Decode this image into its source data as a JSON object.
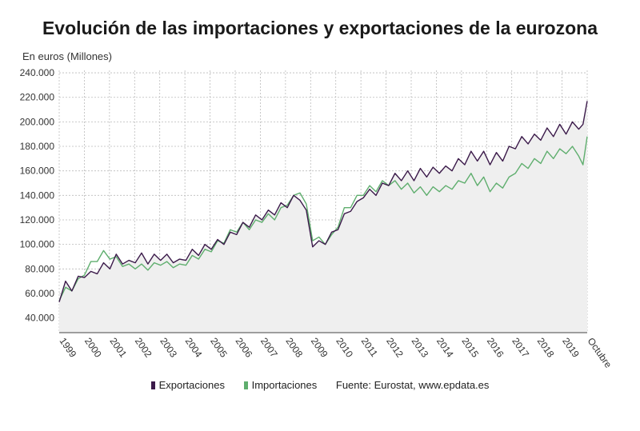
{
  "title": "Evolución de las importaciones y exportaciones de la eurozona",
  "colors": {
    "exportaciones": "#3b1a4a",
    "importaciones": "#5fae6e",
    "area": "#efefef"
  },
  "chart_data": {
    "type": "line",
    "ylabel": "En euros (Millones)",
    "xlabel": "",
    "ylim": [
      28000,
      242000
    ],
    "yticks": [
      {
        "value": 40000,
        "label": "40.000"
      },
      {
        "value": 60000,
        "label": "60.000"
      },
      {
        "value": 80000,
        "label": "80.000"
      },
      {
        "value": 100000,
        "label": "100.000"
      },
      {
        "value": 120000,
        "label": "120.000"
      },
      {
        "value": 140000,
        "label": "140.000"
      },
      {
        "value": 160000,
        "label": "160.000"
      },
      {
        "value": 180000,
        "label": "180.000"
      },
      {
        "value": 200000,
        "label": "200.000"
      },
      {
        "value": 220000,
        "label": "220.000"
      },
      {
        "value": 240000,
        "label": "240.000"
      }
    ],
    "xticks": [
      "1999",
      "2000",
      "2001",
      "2002",
      "2003",
      "2004",
      "2005",
      "2006",
      "2007",
      "2008",
      "2009",
      "2010",
      "2011",
      "2012",
      "2013",
      "2014",
      "2015",
      "2016",
      "2017",
      "2018",
      "2019",
      "Octubre"
    ],
    "x_range": [
      1999.0,
      2019.8333
    ],
    "grid": true,
    "legend_position": "bottom",
    "series": [
      {
        "name": "Exportaciones",
        "key": "exportaciones",
        "points": [
          [
            1999.0,
            53000
          ],
          [
            1999.25,
            70000
          ],
          [
            1999.5,
            62000
          ],
          [
            1999.75,
            74000
          ],
          [
            2000.0,
            73000
          ],
          [
            2000.25,
            78000
          ],
          [
            2000.5,
            76000
          ],
          [
            2000.75,
            85000
          ],
          [
            2001.0,
            80000
          ],
          [
            2001.25,
            92000
          ],
          [
            2001.5,
            84000
          ],
          [
            2001.75,
            87000
          ],
          [
            2002.0,
            85000
          ],
          [
            2002.25,
            93000
          ],
          [
            2002.5,
            84000
          ],
          [
            2002.75,
            92000
          ],
          [
            2003.0,
            87000
          ],
          [
            2003.25,
            92000
          ],
          [
            2003.5,
            85000
          ],
          [
            2003.75,
            88000
          ],
          [
            2004.0,
            87000
          ],
          [
            2004.25,
            96000
          ],
          [
            2004.5,
            91000
          ],
          [
            2004.75,
            100000
          ],
          [
            2005.0,
            96000
          ],
          [
            2005.25,
            104000
          ],
          [
            2005.5,
            100000
          ],
          [
            2005.75,
            110000
          ],
          [
            2006.0,
            108000
          ],
          [
            2006.25,
            118000
          ],
          [
            2006.5,
            114000
          ],
          [
            2006.75,
            124000
          ],
          [
            2007.0,
            120000
          ],
          [
            2007.25,
            128000
          ],
          [
            2007.5,
            124000
          ],
          [
            2007.75,
            134000
          ],
          [
            2008.0,
            130000
          ],
          [
            2008.25,
            140000
          ],
          [
            2008.5,
            136000
          ],
          [
            2008.75,
            128000
          ],
          [
            2009.0,
            98000
          ],
          [
            2009.25,
            103000
          ],
          [
            2009.5,
            100000
          ],
          [
            2009.75,
            110000
          ],
          [
            2010.0,
            112000
          ],
          [
            2010.25,
            125000
          ],
          [
            2010.5,
            127000
          ],
          [
            2010.75,
            135000
          ],
          [
            2011.0,
            138000
          ],
          [
            2011.25,
            145000
          ],
          [
            2011.5,
            140000
          ],
          [
            2011.75,
            150000
          ],
          [
            2012.0,
            148000
          ],
          [
            2012.25,
            158000
          ],
          [
            2012.5,
            152000
          ],
          [
            2012.75,
            160000
          ],
          [
            2013.0,
            152000
          ],
          [
            2013.25,
            162000
          ],
          [
            2013.5,
            155000
          ],
          [
            2013.75,
            163000
          ],
          [
            2014.0,
            158000
          ],
          [
            2014.25,
            164000
          ],
          [
            2014.5,
            160000
          ],
          [
            2014.75,
            170000
          ],
          [
            2015.0,
            165000
          ],
          [
            2015.25,
            176000
          ],
          [
            2015.5,
            168000
          ],
          [
            2015.75,
            176000
          ],
          [
            2016.0,
            165000
          ],
          [
            2016.25,
            175000
          ],
          [
            2016.5,
            168000
          ],
          [
            2016.75,
            180000
          ],
          [
            2017.0,
            178000
          ],
          [
            2017.25,
            188000
          ],
          [
            2017.5,
            182000
          ],
          [
            2017.75,
            190000
          ],
          [
            2018.0,
            185000
          ],
          [
            2018.25,
            195000
          ],
          [
            2018.5,
            188000
          ],
          [
            2018.75,
            198000
          ],
          [
            2019.0,
            190000
          ],
          [
            2019.25,
            200000
          ],
          [
            2019.5,
            194000
          ],
          [
            2019.6667,
            198000
          ],
          [
            2019.8333,
            217000
          ]
        ]
      },
      {
        "name": "Importaciones",
        "key": "importaciones",
        "points": [
          [
            1999.0,
            54000
          ],
          [
            1999.25,
            65000
          ],
          [
            1999.5,
            62000
          ],
          [
            1999.75,
            72000
          ],
          [
            2000.0,
            75000
          ],
          [
            2000.25,
            86000
          ],
          [
            2000.5,
            86000
          ],
          [
            2000.75,
            95000
          ],
          [
            2001.0,
            88000
          ],
          [
            2001.25,
            90000
          ],
          [
            2001.5,
            82000
          ],
          [
            2001.75,
            84000
          ],
          [
            2002.0,
            80000
          ],
          [
            2002.25,
            84000
          ],
          [
            2002.5,
            79000
          ],
          [
            2002.75,
            85000
          ],
          [
            2003.0,
            83000
          ],
          [
            2003.25,
            86000
          ],
          [
            2003.5,
            81000
          ],
          [
            2003.75,
            84000
          ],
          [
            2004.0,
            83000
          ],
          [
            2004.25,
            91000
          ],
          [
            2004.5,
            88000
          ],
          [
            2004.75,
            96000
          ],
          [
            2005.0,
            94000
          ],
          [
            2005.25,
            103000
          ],
          [
            2005.5,
            101000
          ],
          [
            2005.75,
            112000
          ],
          [
            2006.0,
            110000
          ],
          [
            2006.25,
            118000
          ],
          [
            2006.5,
            112000
          ],
          [
            2006.75,
            120000
          ],
          [
            2007.0,
            118000
          ],
          [
            2007.25,
            125000
          ],
          [
            2007.5,
            120000
          ],
          [
            2007.75,
            130000
          ],
          [
            2008.0,
            132000
          ],
          [
            2008.25,
            140000
          ],
          [
            2008.5,
            142000
          ],
          [
            2008.75,
            133000
          ],
          [
            2009.0,
            103000
          ],
          [
            2009.25,
            106000
          ],
          [
            2009.5,
            100000
          ],
          [
            2009.75,
            108000
          ],
          [
            2010.0,
            114000
          ],
          [
            2010.25,
            130000
          ],
          [
            2010.5,
            130000
          ],
          [
            2010.75,
            140000
          ],
          [
            2011.0,
            140000
          ],
          [
            2011.25,
            148000
          ],
          [
            2011.5,
            143000
          ],
          [
            2011.75,
            152000
          ],
          [
            2012.0,
            148000
          ],
          [
            2012.25,
            152000
          ],
          [
            2012.5,
            145000
          ],
          [
            2012.75,
            150000
          ],
          [
            2013.0,
            142000
          ],
          [
            2013.25,
            147000
          ],
          [
            2013.5,
            140000
          ],
          [
            2013.75,
            147000
          ],
          [
            2014.0,
            143000
          ],
          [
            2014.25,
            148000
          ],
          [
            2014.5,
            145000
          ],
          [
            2014.75,
            152000
          ],
          [
            2015.0,
            150000
          ],
          [
            2015.25,
            158000
          ],
          [
            2015.5,
            148000
          ],
          [
            2015.75,
            155000
          ],
          [
            2016.0,
            143000
          ],
          [
            2016.25,
            150000
          ],
          [
            2016.5,
            146000
          ],
          [
            2016.75,
            155000
          ],
          [
            2017.0,
            158000
          ],
          [
            2017.25,
            166000
          ],
          [
            2017.5,
            162000
          ],
          [
            2017.75,
            170000
          ],
          [
            2018.0,
            166000
          ],
          [
            2018.25,
            176000
          ],
          [
            2018.5,
            170000
          ],
          [
            2018.75,
            178000
          ],
          [
            2019.0,
            174000
          ],
          [
            2019.25,
            180000
          ],
          [
            2019.5,
            172000
          ],
          [
            2019.6667,
            165000
          ],
          [
            2019.8333,
            188000
          ]
        ]
      }
    ]
  },
  "legend": {
    "exportaciones_label": "Exportaciones",
    "importaciones_label": "Importaciones",
    "source": "Fuente: Eurostat, www.epdata.es"
  }
}
